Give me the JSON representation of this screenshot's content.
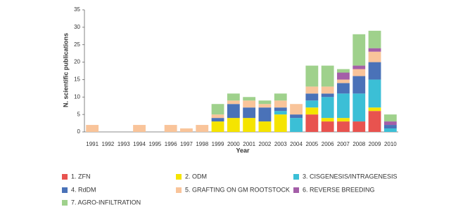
{
  "chart_data": {
    "type": "bar",
    "stacked": true,
    "x_label": "Year",
    "y_label": "N. scientific publications",
    "categories": [
      "1991",
      "1992",
      "1993",
      "1994",
      "1995",
      "1996",
      "1997",
      "1998",
      "1999",
      "2000",
      "2001",
      "2002",
      "2003",
      "2004",
      "2005",
      "2006",
      "2007",
      "2008",
      "2009",
      "2010"
    ],
    "ylim": [
      0,
      35
    ],
    "yticks": [
      0,
      5,
      10,
      15,
      20,
      25,
      30,
      35
    ],
    "series": [
      {
        "name": "1. ZFN",
        "color": "#e8534f",
        "values": [
          0,
          0,
          0,
          0,
          0,
          0,
          0,
          0,
          0,
          0,
          0,
          0,
          0,
          0,
          5,
          3,
          3,
          3,
          6,
          0
        ]
      },
      {
        "name": "2. ODM",
        "color": "#f5e400",
        "values": [
          0,
          0,
          0,
          0,
          0,
          0,
          0,
          0,
          3,
          4,
          4,
          3,
          5,
          0,
          2,
          1,
          1,
          0,
          1,
          0
        ]
      },
      {
        "name": "3. CISGENESIS/INTRAGENESIS",
        "color": "#3bbfd6",
        "values": [
          0,
          0,
          0,
          0,
          0,
          0,
          0,
          0,
          0,
          0,
          0,
          0,
          1,
          4,
          2,
          6,
          7,
          8,
          8,
          1
        ]
      },
      {
        "name": "4. RdDM",
        "color": "#4a72b8",
        "values": [
          0,
          0,
          0,
          0,
          0,
          0,
          0,
          0,
          1,
          4,
          3,
          4,
          1,
          1,
          2,
          1,
          3,
          5,
          5,
          1
        ]
      },
      {
        "name": "5. GRAFTING ON GM ROOTSTOCK",
        "color": "#f9c49a",
        "values": [
          2,
          0,
          0,
          2,
          0,
          2,
          1,
          2,
          1,
          1,
          2,
          1,
          2,
          3,
          2,
          2,
          1,
          2,
          3,
          0
        ]
      },
      {
        "name": "6. REVERSE BREEDING",
        "color": "#a45ea8",
        "values": [
          0,
          0,
          0,
          0,
          0,
          0,
          0,
          0,
          0,
          0,
          0,
          0,
          0,
          0,
          0,
          0,
          2,
          1,
          1,
          1
        ]
      },
      {
        "name": "7. AGRO-INFILTRATION",
        "color": "#9fd18c",
        "values": [
          0,
          0,
          0,
          0,
          0,
          0,
          0,
          0,
          3,
          2,
          1,
          1,
          2,
          0,
          6,
          6,
          1,
          9,
          5,
          2
        ]
      }
    ]
  }
}
